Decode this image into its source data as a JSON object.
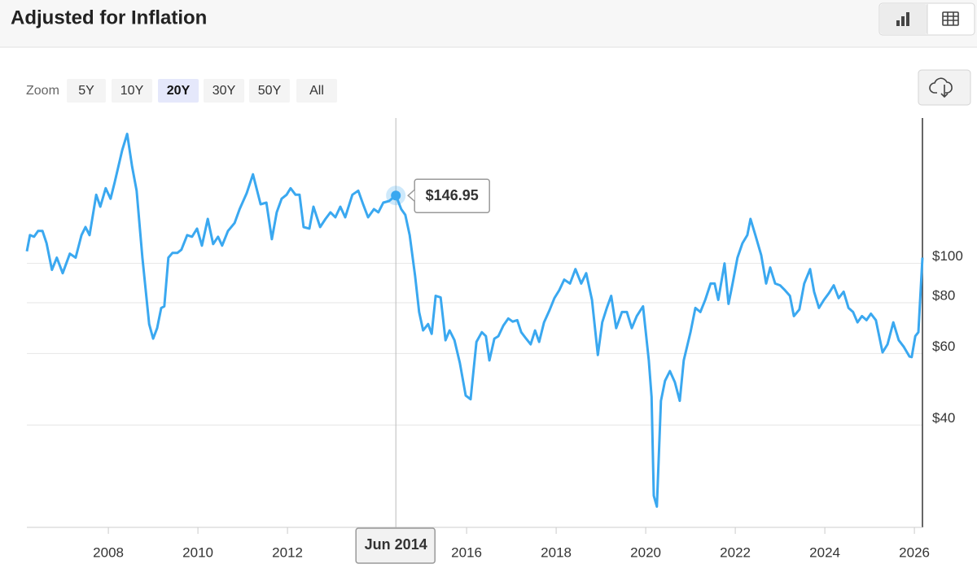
{
  "header": {
    "title": "Adjusted for Inflation"
  },
  "zoom": {
    "label": "Zoom",
    "options": [
      "5Y",
      "10Y",
      "20Y",
      "30Y",
      "50Y",
      "All"
    ],
    "selected": 2
  },
  "chart_data": {
    "type": "line",
    "log": true,
    "grid": true,
    "color": "#3aa8f0",
    "x": [
      2006.18,
      2006.25,
      2006.34,
      2006.43,
      2006.53,
      2006.62,
      2006.74,
      2006.85,
      2006.98,
      2007.14,
      2007.27,
      2007.4,
      2007.49,
      2007.58,
      2007.73,
      2007.82,
      2007.94,
      2008.05,
      2008.14,
      2008.31,
      2008.42,
      2008.53,
      2008.63,
      2008.76,
      2008.91,
      2009.0,
      2009.09,
      2009.18,
      2009.25,
      2009.34,
      2009.43,
      2009.54,
      2009.63,
      2009.76,
      2009.87,
      2009.98,
      2010.09,
      2010.22,
      2010.34,
      2010.45,
      2010.54,
      2010.67,
      2010.82,
      2010.93,
      2011.09,
      2011.23,
      2011.4,
      2011.53,
      2011.65,
      2011.76,
      2011.87,
      2011.98,
      2012.07,
      2012.18,
      2012.27,
      2012.36,
      2012.49,
      2012.58,
      2012.73,
      2012.85,
      2012.96,
      2013.07,
      2013.18,
      2013.29,
      2013.45,
      2013.58,
      2013.69,
      2013.8,
      2013.93,
      2014.03,
      2014.14,
      2014.27,
      2014.42,
      2014.54,
      2014.63,
      2014.73,
      2014.85,
      2014.94,
      2015.03,
      2015.14,
      2015.22,
      2015.31,
      2015.42,
      2015.53,
      2015.62,
      2015.73,
      2015.85,
      2015.98,
      2016.09,
      2016.22,
      2016.34,
      2016.43,
      2016.51,
      2016.62,
      2016.71,
      2016.82,
      2016.93,
      2017.03,
      2017.13,
      2017.22,
      2017.33,
      2017.43,
      2017.53,
      2017.62,
      2017.73,
      2017.85,
      2017.96,
      2018.07,
      2018.18,
      2018.31,
      2018.43,
      2018.56,
      2018.67,
      2018.8,
      2018.93,
      2019.03,
      2019.13,
      2019.23,
      2019.34,
      2019.47,
      2019.58,
      2019.69,
      2019.8,
      2019.94,
      2020.07,
      2020.13,
      2020.18,
      2020.25,
      2020.34,
      2020.43,
      2020.54,
      2020.65,
      2020.76,
      2020.85,
      2021.0,
      2021.11,
      2021.22,
      2021.33,
      2021.45,
      2021.54,
      2021.62,
      2021.76,
      2021.85,
      2021.94,
      2022.05,
      2022.16,
      2022.27,
      2022.34,
      2022.45,
      2022.58,
      2022.69,
      2022.78,
      2022.89,
      2023.0,
      2023.11,
      2023.22,
      2023.31,
      2023.43,
      2023.54,
      2023.67,
      2023.76,
      2023.87,
      2023.98,
      2024.09,
      2024.2,
      2024.31,
      2024.42,
      2024.53,
      2024.63,
      2024.73,
      2024.83,
      2024.93,
      2025.03,
      2025.14,
      2025.29,
      2025.4,
      2025.53,
      2025.65,
      2025.76,
      2025.89,
      2025.94,
      2026.02,
      2026.09,
      2026.18
    ],
    "values": [
      107.1,
      117.4,
      116.3,
      120.2,
      120.2,
      112.1,
      96.4,
      103.3,
      94.6,
      105.7,
      103.3,
      117.4,
      122.9,
      117.4,
      147.6,
      137.9,
      153.1,
      144.3,
      158.2,
      190.0,
      208.4,
      173.4,
      151.0,
      103.3,
      70.9,
      65.3,
      69.3,
      77.7,
      78.4,
      103.3,
      106.1,
      106.1,
      108.1,
      117.4,
      116.3,
      121.8,
      110.6,
      128.7,
      111.6,
      116.3,
      110.6,
      120.2,
      125.8,
      136.0,
      148.9,
      165.7,
      139.8,
      141.1,
      114.7,
      133.6,
      144.3,
      147.6,
      153.1,
      147.6,
      147.6,
      122.9,
      121.8,
      137.9,
      122.9,
      128.7,
      133.6,
      129.9,
      137.9,
      129.9,
      147.6,
      151.0,
      139.8,
      129.9,
      136.0,
      133.6,
      141.1,
      142.4,
      146.95,
      136.0,
      131.7,
      117.4,
      93.3,
      75.9,
      68.4,
      70.9,
      67.1,
      83.2,
      82.5,
      64.7,
      68.4,
      64.7,
      56.9,
      47.3,
      46.3,
      64.1,
      67.7,
      66.2,
      57.7,
      65.3,
      66.2,
      70.3,
      73.2,
      71.9,
      72.5,
      67.7,
      65.3,
      63.2,
      68.4,
      64.1,
      71.6,
      76.6,
      82.1,
      85.9,
      91.2,
      89.2,
      96.8,
      89.2,
      94.6,
      81.3,
      59.5,
      71.6,
      77.7,
      83.2,
      69.3,
      75.9,
      75.9,
      69.3,
      74.2,
      78.4,
      57.7,
      46.9,
      26.8,
      25.2,
      45.9,
      51.4,
      54.3,
      51.0,
      45.9,
      57.7,
      67.7,
      77.7,
      75.9,
      81.3,
      89.2,
      89.2,
      81.3,
      100,
      79.5,
      89.2,
      103.3,
      112.1,
      117.4,
      128.7,
      117.4,
      104.7,
      89.2,
      97.7,
      89.2,
      88.3,
      85.9,
      83.2,
      74.2,
      77.0,
      89.2,
      96.8,
      85.2,
      77.7,
      81.3,
      84.4,
      88.3,
      82.1,
      85.2,
      77.7,
      75.9,
      71.6,
      74.2,
      72.5,
      75.2,
      72.5,
      60.4,
      63.2,
      71.6,
      64.7,
      62.4,
      59.0,
      58.8,
      66.2,
      67.7,
      103.3
    ],
    "xlim": [
      2006.18,
      2026.18
    ],
    "xticks": [
      2008,
      2010,
      2012,
      2014,
      2016,
      2018,
      2020,
      2022,
      2024,
      2026
    ],
    "ylim": [
      22.4,
      228
    ],
    "yticks": [
      {
        "value": 40,
        "label": "$40"
      },
      {
        "value": 60,
        "label": "$60"
      },
      {
        "value": 80,
        "label": "$80"
      },
      {
        "value": 100,
        "label": "$100"
      }
    ],
    "tooltip": {
      "x": 2014.42,
      "value": 146.95,
      "value_label": "$146.95",
      "x_label": "Jun 2014"
    }
  }
}
